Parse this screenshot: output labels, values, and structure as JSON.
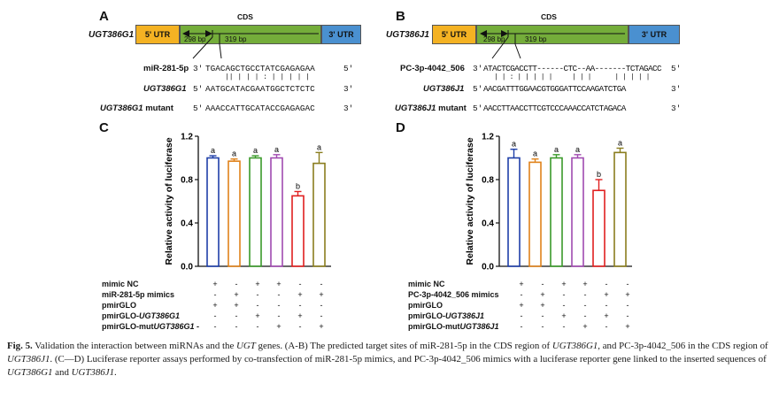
{
  "panel_a": {
    "letter": "A",
    "gene": "UGT386G1",
    "utr5": "5' UTR",
    "cds": "CDS",
    "utr3": "3' UTR",
    "pos_start": "298 bp",
    "pos_end": "319 bp",
    "mirna_label": "miR-281-5p",
    "mirna_prime_left": "3'",
    "mirna_seq": "TGACAGCTGCCTATCGAGAGAA",
    "mirna_prime_right": "5'",
    "pairing": "|| | | | : | | | | |",
    "target_label": "UGT386G1",
    "target_prime_left": "5'",
    "target_seq": "AATGCATACGAATGGCTCTCTC",
    "target_prime_right": "3'",
    "mutant_label_gene": "UGT386G1",
    "mutant_label_suffix": " mutant",
    "mutant_prime_left": "5'",
    "mutant_seq": "AAACCATTGCATACCGAGAGAC",
    "mutant_prime_right": "3'"
  },
  "panel_b": {
    "letter": "B",
    "gene": "UGT386J1",
    "utr5": "5' UTR",
    "cds": "CDS",
    "utr3": "3' UTR",
    "pos_start": "298 bp",
    "pos_end": "319 bp",
    "mirna_label": "PC-3p-4042_506",
    "mirna_prime_left": "3'",
    "mirna_seq": "ATACTCGACCTT------CTC--AA-------TCTAGACC",
    "mirna_prime_right": "5'",
    "pairing": "| | : | | | | |     | | |      | | | | |",
    "target_label": "UGT386J1",
    "target_prime_left": "5'",
    "target_seq": "AACGATTTGGAACGTGGGATTCCAAGATCTGA",
    "target_prime_right": "3'",
    "mutant_label_gene": "UGT386J1",
    "mutant_label_suffix": " mutant",
    "mutant_prime_left": "5'",
    "mutant_seq": "AACCTTAACCTTCGTCCCAAACCATCTAGACA",
    "mutant_prime_right": "3'"
  },
  "panel_c": {
    "letter": "C",
    "row_labels": [
      "mimic NC",
      "miR-281-5p mimics",
      "pmirGLO",
      "pmirGLO-",
      "pmirGLO-mut"
    ],
    "row_genes": [
      "",
      "",
      "",
      "UGT386G1",
      "UGT386G1"
    ],
    "row_suffix": [
      "",
      "",
      "",
      "",
      " -"
    ]
  },
  "panel_d": {
    "letter": "D",
    "row_labels": [
      "mimic NC",
      "PC-3p-4042_506 mimics",
      "pmirGLO",
      "pmirGLO-",
      "pmirGLO-mut"
    ],
    "row_genes": [
      "",
      "",
      "",
      "UGT386J1",
      "UGT386J1"
    ],
    "row_suffix": [
      "",
      "",
      "",
      "",
      ""
    ]
  },
  "signs": [
    [
      "+",
      "-",
      "+",
      "+",
      "-",
      "-"
    ],
    [
      "-",
      "+",
      "-",
      "-",
      "+",
      "+"
    ],
    [
      "+",
      "+",
      "-",
      "-",
      "-",
      "-"
    ],
    [
      "-",
      "-",
      "+",
      "-",
      "+",
      "-"
    ],
    [
      "-",
      "-",
      "-",
      "+",
      "-",
      "+"
    ]
  ],
  "chart_data": [
    {
      "type": "bar",
      "panel": "C",
      "ylabel": "Relative activity of luciferase",
      "ylim": [
        0,
        1.2
      ],
      "yticks": [
        "0.0",
        "0.4",
        "0.8",
        "1.2"
      ],
      "values": [
        1.0,
        0.97,
        1.0,
        1.0,
        0.65,
        0.95
      ],
      "errors": [
        0.02,
        0.02,
        0.02,
        0.03,
        0.04,
        0.1
      ],
      "letters": [
        "a",
        "a",
        "a",
        "a",
        "b",
        "a"
      ],
      "colors": [
        "#1f3fa8",
        "#e0821a",
        "#3a9a2a",
        "#a04ab0",
        "#e02020",
        "#8a7d1e"
      ]
    },
    {
      "type": "bar",
      "panel": "D",
      "ylabel": "Relative activity of luciferase",
      "ylim": [
        0,
        1.2
      ],
      "yticks": [
        "0.0",
        "0.4",
        "0.8",
        "1.2"
      ],
      "values": [
        1.0,
        0.96,
        1.0,
        1.0,
        0.7,
        1.05
      ],
      "errors": [
        0.08,
        0.03,
        0.03,
        0.03,
        0.1,
        0.04
      ],
      "letters": [
        "a",
        "a",
        "a",
        "a",
        "b",
        "a"
      ],
      "colors": [
        "#1f3fa8",
        "#e0821a",
        "#3a9a2a",
        "#a04ab0",
        "#e02020",
        "#8a7d1e"
      ]
    }
  ],
  "caption": {
    "fig": "Fig. 5.",
    "t1": " Validation the interaction between miRNAs and the ",
    "ugt": "UGT",
    "t2": " genes. (A-B) The predicted target sites of miR-281-5p in the CDS region of ",
    "g1": "UGT386G1",
    "t3": ", and PC-3p-4042_506 in the CDS region of ",
    "j1": "UGT386J1",
    "t4": ". (C—D) Luciferase reporter assays performed by co-transfection of miR-281-5p mimics, and PC-3p-4042_506 mimics with a luciferase reporter gene linked to the inserted sequences of ",
    "g1b": "UGT386G1",
    "t5": " and ",
    "j1b": "UGT386J1",
    "t6": "."
  }
}
